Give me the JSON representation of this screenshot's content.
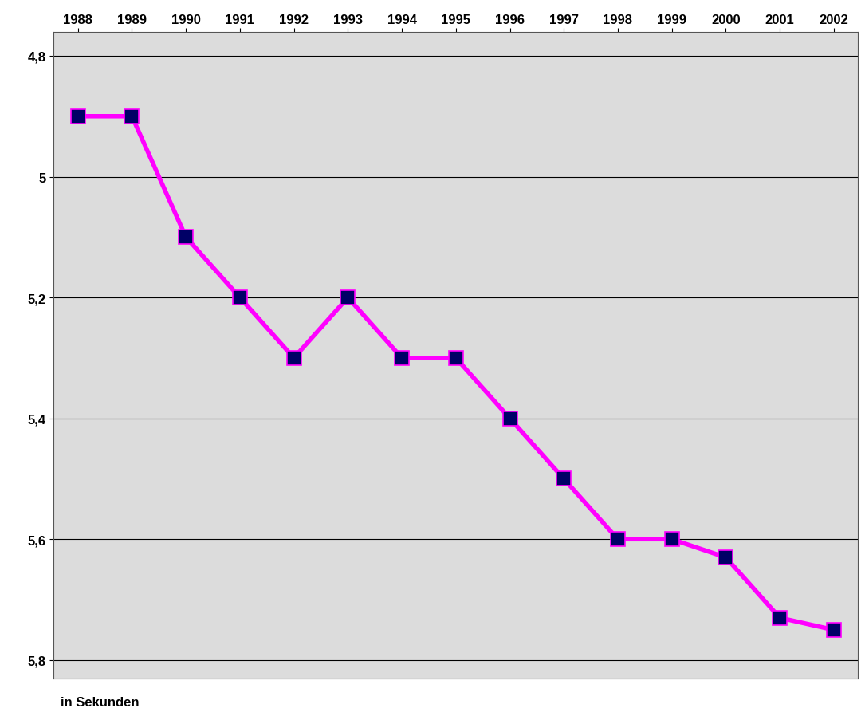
{
  "chart_data": {
    "type": "line",
    "x": [
      1988,
      1989,
      1990,
      1991,
      1992,
      1993,
      1994,
      1995,
      1996,
      1997,
      1998,
      1999,
      2000,
      2001,
      2002
    ],
    "values": [
      4.9,
      4.9,
      5.1,
      5.2,
      5.3,
      5.2,
      5.3,
      5.3,
      5.4,
      5.5,
      5.6,
      5.6,
      5.63,
      5.73,
      5.75
    ],
    "color": "#ff00ff",
    "marker": "square",
    "line_style": "solid",
    "xlim": [
      1987.55,
      2002.45
    ],
    "xticks": [
      1988,
      1989,
      1990,
      1991,
      1992,
      1993,
      1994,
      1995,
      1996,
      1997,
      1998,
      1999,
      2000,
      2001,
      2002
    ],
    "ylim": [
      5.83,
      4.76
    ],
    "yticks": [
      {
        "value": 4.8,
        "label": "4,8"
      },
      5,
      {
        "value": 5.2,
        "label": "5,2"
      },
      {
        "value": 5.4,
        "label": "5,4"
      },
      {
        "value": 5.6,
        "label": "5,6"
      },
      {
        "value": 5.8,
        "label": "5,8"
      }
    ],
    "y_label": "in Sekunden",
    "grid": true
  }
}
